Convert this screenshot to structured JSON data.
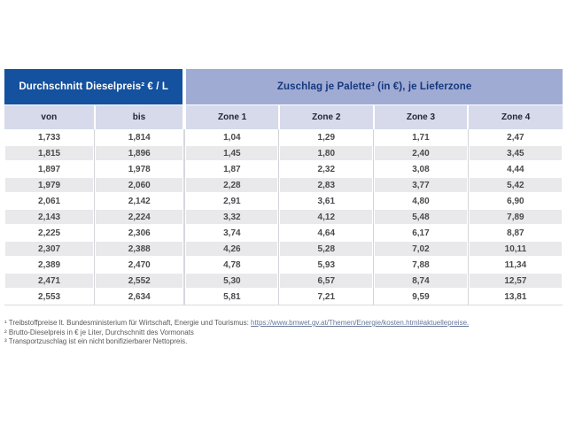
{
  "table": {
    "header_left": "Durchschnitt Dieselpreis² € / L",
    "header_right": "Zuschlag je Palette³ (in €), je Lieferzone",
    "columns": [
      "von",
      "bis",
      "Zone 1",
      "Zone 2",
      "Zone 3",
      "Zone 4"
    ],
    "rows": [
      [
        "1,733",
        "1,814",
        "1,04",
        "1,29",
        "1,71",
        "2,47"
      ],
      [
        "1,815",
        "1,896",
        "1,45",
        "1,80",
        "2,40",
        "3,45"
      ],
      [
        "1,897",
        "1,978",
        "1,87",
        "2,32",
        "3,08",
        "4,44"
      ],
      [
        "1,979",
        "2,060",
        "2,28",
        "2,83",
        "3,77",
        "5,42"
      ],
      [
        "2,061",
        "2,142",
        "2,91",
        "3,61",
        "4,80",
        "6,90"
      ],
      [
        "2,143",
        "2,224",
        "3,32",
        "4,12",
        "5,48",
        "7,89"
      ],
      [
        "2,225",
        "2,306",
        "3,74",
        "4,64",
        "6,17",
        "8,87"
      ],
      [
        "2,307",
        "2,388",
        "4,26",
        "5,28",
        "7,02",
        "10,11"
      ],
      [
        "2,389",
        "2,470",
        "4,78",
        "5,93",
        "7,88",
        "11,34"
      ],
      [
        "2,471",
        "2,552",
        "5,30",
        "6,57",
        "8,74",
        "12,57"
      ],
      [
        "2,553",
        "2,634",
        "5,81",
        "7,21",
        "9,59",
        "13,81"
      ]
    ]
  },
  "footnotes": {
    "f1_marker": "¹ ",
    "f1_text": "Treibstoffpreise lt. Bundesministerium für Wirtschaft, Energie und Tourismus: ",
    "f1_link": "https://www.bmwet.gv.at/Themen/Energie/kosten.html#aktuellepreise.",
    "f2": "² Brutto-Dieselpreis in € je Liter, Durchschnitt des Vormonats",
    "f3": "³ Transportzuschlag ist ein nicht bonifizierbarer Nettopreis."
  },
  "colors": {
    "header_blue": "#14519e",
    "header_periwinkle": "#9fabd3",
    "header_right_text": "#16377e",
    "subheader_lavender": "#d6daeb",
    "row_alt_gray": "#e9e9eb",
    "data_text": "#4a4a4e",
    "footnote_text": "#58585a",
    "link_blue": "#667799"
  }
}
